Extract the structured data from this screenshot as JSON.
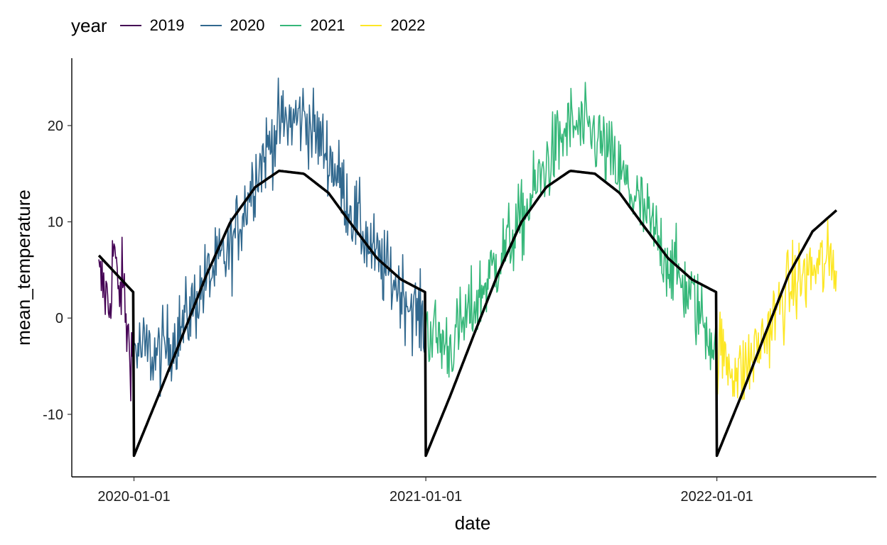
{
  "legend": {
    "title": "year",
    "items": [
      {
        "label": "2019",
        "color": "#440154"
      },
      {
        "label": "2020",
        "color": "#31688E"
      },
      {
        "label": "2021",
        "color": "#35B779"
      },
      {
        "label": "2022",
        "color": "#FDE725"
      }
    ]
  },
  "chart_data": {
    "type": "line",
    "xlabel": "date",
    "ylabel": "mean_temperature",
    "xlim": [
      "2019-10-15",
      "2022-07-20"
    ],
    "ylim": [
      -16.5,
      27
    ],
    "x_ticks": [
      "2020-01-01",
      "2021-01-01",
      "2022-01-01"
    ],
    "y_ticks": [
      -10,
      0,
      10,
      20
    ],
    "y_tick_labels": [
      "-10",
      "0",
      "10",
      "20"
    ],
    "grid": false,
    "legend_position": "top",
    "series": [
      {
        "name": "2019",
        "color": "#440154",
        "start": "2019-11-18",
        "end": "2019-12-31",
        "x": [
          "2019-11-18",
          "2019-11-25",
          "2019-12-01",
          "2019-12-07",
          "2019-12-12",
          "2019-12-18",
          "2019-12-24",
          "2019-12-31"
        ],
        "y": [
          4,
          3,
          1,
          8,
          2,
          4,
          -2,
          -4
        ]
      },
      {
        "name": "2020",
        "color": "#31688E",
        "start": "2020-01-01",
        "end": "2020-12-31",
        "x": [
          "2020-01-01",
          "2020-01-31",
          "2020-03-01",
          "2020-04-01",
          "2020-05-01",
          "2020-06-01",
          "2020-07-01",
          "2020-08-01",
          "2020-09-01",
          "2020-10-01",
          "2020-11-01",
          "2020-12-01",
          "2020-12-31"
        ],
        "y": [
          -3,
          -4,
          -1,
          4,
          7,
          15,
          20,
          21,
          17,
          11,
          6,
          3,
          -1
        ]
      },
      {
        "name": "2021",
        "color": "#35B779",
        "start": "2021-01-01",
        "end": "2021-12-31",
        "x": [
          "2021-01-01",
          "2021-01-31",
          "2021-03-01",
          "2021-04-01",
          "2021-05-01",
          "2021-06-01",
          "2021-07-01",
          "2021-08-01",
          "2021-09-01",
          "2021-10-01",
          "2021-11-01",
          "2021-12-01",
          "2021-12-31"
        ],
        "y": [
          -1,
          -3,
          1,
          6,
          10,
          16,
          20,
          19,
          15,
          11,
          6,
          2,
          -3
        ]
      },
      {
        "name": "2022",
        "color": "#FDE725",
        "start": "2022-01-01",
        "end": "2022-05-31",
        "x": [
          "2022-01-01",
          "2022-01-31",
          "2022-03-01",
          "2022-04-01",
          "2022-05-01",
          "2022-05-31"
        ],
        "y": [
          -3,
          -6,
          -2,
          3,
          5,
          6
        ]
      }
    ],
    "fit": {
      "color": "#000000",
      "segments": [
        {
          "x": [
            "2019-11-18",
            "2019-12-31"
          ],
          "y": [
            6.5,
            2.7
          ]
        },
        {
          "x": [
            "2020-01-01",
            "2020-02-01",
            "2020-03-01",
            "2020-04-01",
            "2020-05-01",
            "2020-06-01",
            "2020-07-01",
            "2020-08-01",
            "2020-09-01",
            "2020-10-01",
            "2020-11-01",
            "2020-12-01",
            "2020-12-31"
          ],
          "y": [
            -14.3,
            -8,
            -2,
            4.5,
            10,
            13.6,
            15.3,
            15,
            13,
            9.6,
            6.2,
            4,
            2.7
          ]
        },
        {
          "x": [
            "2021-01-01",
            "2021-02-01",
            "2021-03-01",
            "2021-04-01",
            "2021-05-01",
            "2021-06-01",
            "2021-07-01",
            "2021-08-01",
            "2021-09-01",
            "2021-10-01",
            "2021-11-01",
            "2021-12-01",
            "2021-12-31"
          ],
          "y": [
            -14.3,
            -8,
            -2,
            4.5,
            10,
            13.6,
            15.3,
            15,
            13,
            9.6,
            6.2,
            4,
            2.7
          ]
        },
        {
          "x": [
            "2022-01-01",
            "2022-02-01",
            "2022-03-01",
            "2022-04-01",
            "2022-05-01",
            "2022-05-31"
          ],
          "y": [
            -14.3,
            -8,
            -2,
            4.5,
            9,
            11.2
          ]
        }
      ]
    }
  }
}
